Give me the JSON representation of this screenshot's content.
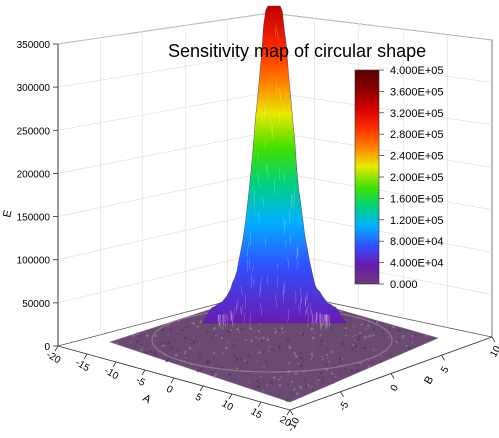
{
  "chart_data": {
    "type": "surface3d",
    "title": "Sensitivity map of circular shape",
    "xlabel": "A",
    "ylabel": "B",
    "zlabel": "E",
    "x_ticks": [
      "-20",
      "-15",
      "-10",
      "-5",
      "0",
      "5",
      "10",
      "15",
      "20"
    ],
    "y_ticks": [
      "-10",
      "-5",
      "0",
      "5",
      "10"
    ],
    "z_ticks": [
      "0",
      "50000",
      "100000",
      "150000",
      "200000",
      "250000",
      "300000",
      "350000"
    ],
    "xlim": [
      -20,
      20
    ],
    "ylim": [
      -10,
      10
    ],
    "zlim": [
      0,
      350000
    ],
    "peak": {
      "x": 0,
      "y": 0,
      "z": 350000
    },
    "colorbar": {
      "labels": [
        "4.000E+05",
        "3.600E+05",
        "3.200E+05",
        "2.800E+05",
        "2.400E+05",
        "2.000E+05",
        "1.600E+05",
        "1.200E+05",
        "8.000E+04",
        "4.000E+04",
        "0.000"
      ],
      "colors": [
        "#5a0000",
        "#8b0000",
        "#d40000",
        "#ff2a00",
        "#ff8000",
        "#e8e800",
        "#40e000",
        "#00d080",
        "#00b0ff",
        "#3050ff",
        "#6a1ab0",
        "#6a3a7a"
      ]
    },
    "grid": true
  }
}
